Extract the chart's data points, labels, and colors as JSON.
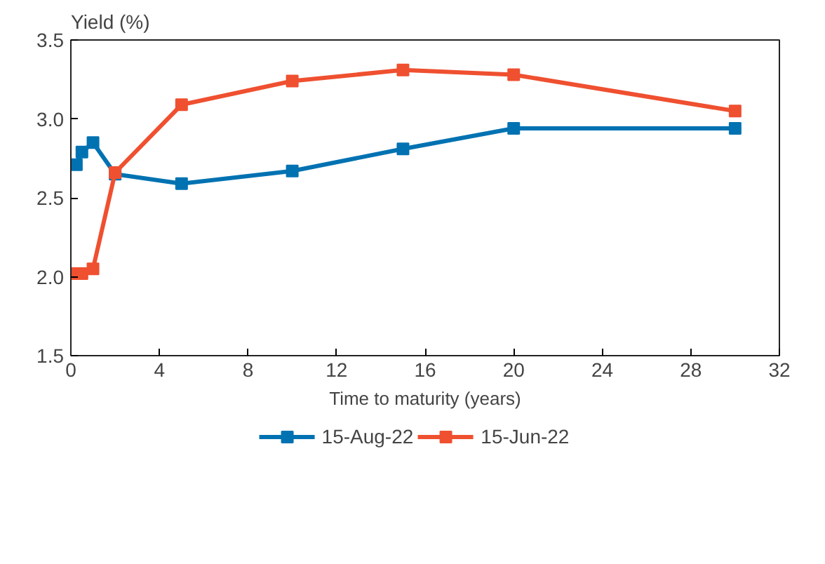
{
  "chart_data": {
    "type": "line",
    "ylabel": "Yield (%)",
    "xlabel": "Time to maturity (years)",
    "x": [
      0.25,
      0.5,
      1,
      2,
      5,
      10,
      15,
      20,
      30
    ],
    "series": [
      {
        "name": "15-Aug-22",
        "color": "#0072b2",
        "values": [
          2.71,
          2.79,
          2.85,
          2.65,
          2.59,
          2.67,
          2.81,
          2.94,
          2.94
        ]
      },
      {
        "name": "15-Jun-22",
        "color": "#ef5030",
        "values": [
          2.02,
          2.02,
          2.05,
          2.66,
          3.09,
          3.24,
          3.31,
          3.28,
          3.05
        ]
      }
    ],
    "xlim": [
      0,
      32
    ],
    "xticks": [
      0,
      4,
      8,
      12,
      16,
      20,
      24,
      28,
      32
    ],
    "ylim": [
      1.5,
      3.5
    ],
    "yticks": [
      {
        "value": 1.5,
        "label": "1.5"
      },
      {
        "value": 2,
        "label": "2.0"
      },
      {
        "value": 2.5,
        "label": "2.5"
      },
      {
        "value": 3,
        "label": "3.0"
      },
      {
        "value": 3.5,
        "label": "3.5"
      }
    ],
    "grid": false,
    "legend": "bottom",
    "marker": "square",
    "line_style": "solid"
  }
}
